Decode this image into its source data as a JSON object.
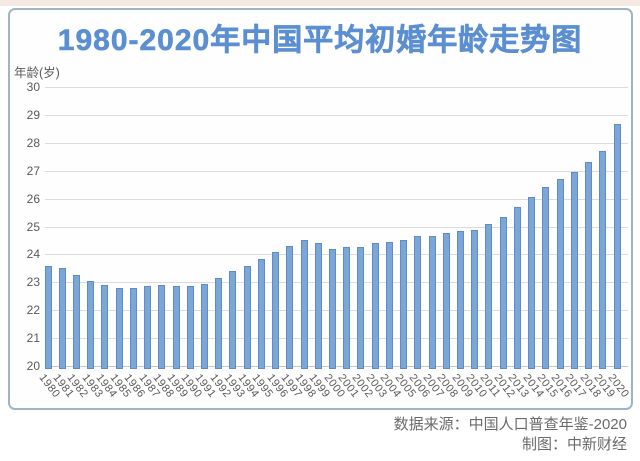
{
  "page": {
    "top_strip_color": "#F6E9E3"
  },
  "header": {
    "title": "1980-2020年中国平均初婚年龄走势图",
    "title_color": "#5B8FD2"
  },
  "footer": {
    "source_line": "数据来源：中国人口普查年鉴-2020",
    "credit_line": "制图：中新财经"
  },
  "chart_data": {
    "type": "bar",
    "title": "1980-2020年中国平均初婚年龄走势图",
    "xlabel": "",
    "ylabel": "年龄(岁)",
    "ylim": [
      20,
      30
    ],
    "yticks": [
      20,
      21,
      22,
      23,
      24,
      25,
      26,
      27,
      28,
      29,
      30
    ],
    "grid": true,
    "legend_position": "none",
    "bar_fill_color": "#7CA6D8",
    "bar_border_color": "#5E8CC4",
    "categories": [
      "1980",
      "1981",
      "1982",
      "1983",
      "1984",
      "1985",
      "1986",
      "1987",
      "1988",
      "1989",
      "1990",
      "1991",
      "1992",
      "1993",
      "1994",
      "1995",
      "1996",
      "1997",
      "1998",
      "1999",
      "2000",
      "2001",
      "2002",
      "2003",
      "2004",
      "2005",
      "2006",
      "2007",
      "2008",
      "2009",
      "2010",
      "2011",
      "2012",
      "2013",
      "2014",
      "2015",
      "2016",
      "2017",
      "2018",
      "2019",
      "2020"
    ],
    "values": [
      23.59,
      23.5,
      23.25,
      23.05,
      22.9,
      22.8,
      22.8,
      22.85,
      22.9,
      22.85,
      22.87,
      22.95,
      23.15,
      23.4,
      23.6,
      23.85,
      24.1,
      24.3,
      24.5,
      24.4,
      24.21,
      24.25,
      24.25,
      24.4,
      24.45,
      24.5,
      24.65,
      24.65,
      24.75,
      24.85,
      24.89,
      25.1,
      25.35,
      25.7,
      26.05,
      26.4,
      26.7,
      26.95,
      27.3,
      27.7,
      28.67
    ]
  }
}
